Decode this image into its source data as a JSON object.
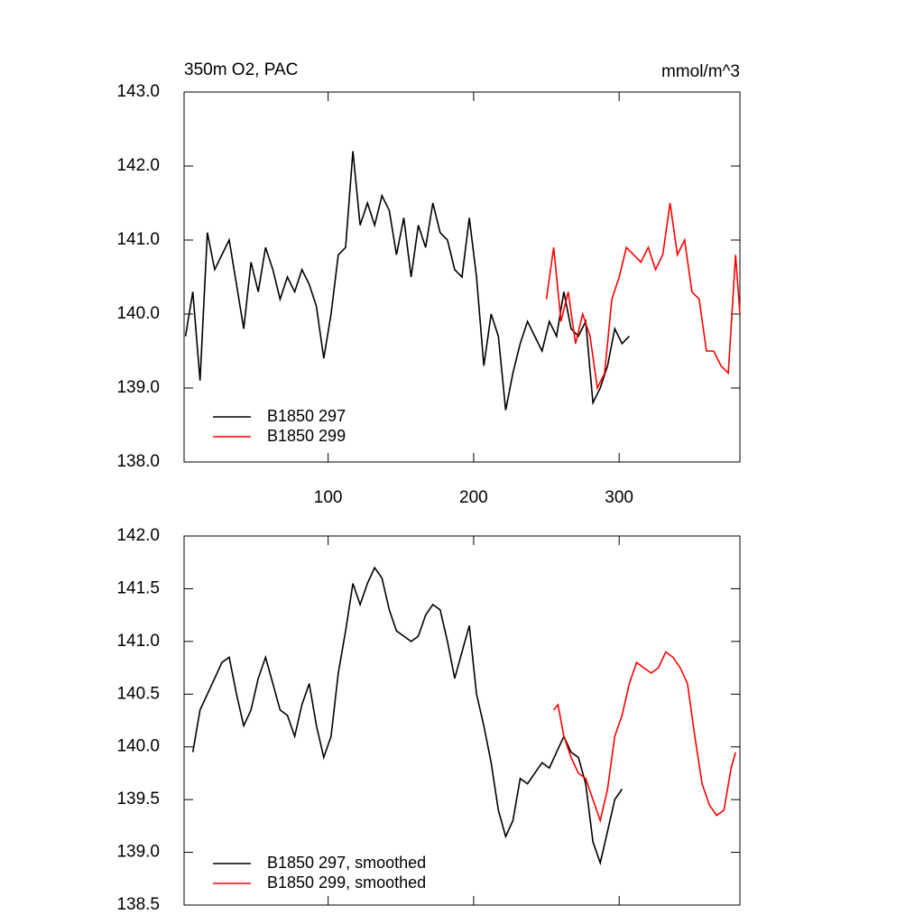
{
  "chart_data": [
    {
      "type": "line",
      "title": "350m O2, PAC",
      "units_label": "mmol/m^3",
      "xlim": [
        1,
        383
      ],
      "xticks": [
        100,
        200,
        300
      ],
      "xticklabels": true,
      "ylim": [
        138,
        143
      ],
      "yticks": [
        {
          "value": 138,
          "label": "138.0"
        },
        {
          "value": 139,
          "label": "139.0"
        },
        {
          "value": 140,
          "label": "140.0"
        },
        {
          "value": 141,
          "label": "141.0"
        },
        {
          "value": 142,
          "label": "142.0"
        },
        {
          "value": 143,
          "label": "143.0"
        }
      ],
      "legend": "lower left",
      "series": [
        {
          "name": "B1850 297",
          "color": "#000000",
          "x": [
            2,
            7,
            12,
            17,
            22,
            27,
            32,
            37,
            42,
            47,
            52,
            57,
            62,
            67,
            72,
            77,
            82,
            87,
            92,
            97,
            102,
            107,
            112,
            117,
            122,
            127,
            132,
            137,
            142,
            147,
            152,
            157,
            162,
            167,
            172,
            177,
            182,
            187,
            192,
            197,
            202,
            207,
            212,
            217,
            222,
            227,
            232,
            237,
            242,
            247,
            252,
            257,
            262,
            267,
            272,
            277,
            282,
            287,
            292,
            297,
            302,
            307
          ],
          "values": [
            139.7,
            140.3,
            139.1,
            141.1,
            140.6,
            140.8,
            141.0,
            140.4,
            139.8,
            140.7,
            140.3,
            140.9,
            140.6,
            140.2,
            140.5,
            140.3,
            140.6,
            140.4,
            140.1,
            139.4,
            140.0,
            140.8,
            140.9,
            142.2,
            141.2,
            141.5,
            141.2,
            141.6,
            141.4,
            140.8,
            141.3,
            140.5,
            141.2,
            140.9,
            141.5,
            141.1,
            141.0,
            140.6,
            140.5,
            141.3,
            140.5,
            139.3,
            140.0,
            139.7,
            138.7,
            139.2,
            139.6,
            139.9,
            139.7,
            139.5,
            139.9,
            139.7,
            140.3,
            139.8,
            139.7,
            139.9,
            138.8,
            139.0,
            139.3,
            139.8,
            139.6,
            139.7
          ]
        },
        {
          "name": "B1850 299",
          "color": "#ff0000",
          "x": [
            250,
            255,
            260,
            265,
            270,
            275,
            280,
            285,
            290,
            295,
            300,
            305,
            310,
            315,
            320,
            325,
            330,
            335,
            340,
            345,
            350,
            355,
            360,
            365,
            370,
            375,
            380,
            383
          ],
          "values": [
            140.2,
            140.9,
            139.9,
            140.3,
            139.6,
            140.0,
            139.7,
            139.0,
            139.2,
            140.2,
            140.5,
            140.9,
            140.8,
            140.7,
            140.9,
            140.6,
            140.8,
            141.5,
            140.8,
            141.0,
            140.3,
            140.2,
            139.5,
            139.5,
            139.3,
            139.2,
            140.8,
            140.0
          ]
        }
      ]
    },
    {
      "type": "line",
      "xlim": [
        1,
        383
      ],
      "xticks": [
        100,
        200,
        300
      ],
      "xticklabels": false,
      "ylim": [
        138.5,
        142
      ],
      "yticks": [
        {
          "value": 138.5,
          "label": "138.5"
        },
        {
          "value": 139,
          "label": "139.0"
        },
        {
          "value": 139.5,
          "label": "139.5"
        },
        {
          "value": 140,
          "label": "140.0"
        },
        {
          "value": 140.5,
          "label": "140.5"
        },
        {
          "value": 141,
          "label": "141.0"
        },
        {
          "value": 141.5,
          "label": "141.5"
        },
        {
          "value": 142,
          "label": "142.0"
        }
      ],
      "legend": "lower left",
      "series": [
        {
          "name": "B1850 297, smoothed",
          "color": "#000000",
          "x": [
            7,
            12,
            17,
            22,
            27,
            32,
            37,
            42,
            47,
            52,
            57,
            62,
            67,
            72,
            77,
            82,
            87,
            92,
            97,
            102,
            107,
            112,
            117,
            122,
            127,
            132,
            137,
            142,
            147,
            152,
            157,
            162,
            167,
            172,
            177,
            182,
            187,
            192,
            197,
            202,
            207,
            212,
            217,
            222,
            227,
            232,
            237,
            242,
            247,
            252,
            257,
            262,
            267,
            272,
            277,
            282,
            287,
            292,
            297,
            302
          ],
          "values": [
            139.95,
            140.35,
            140.5,
            140.65,
            140.8,
            140.85,
            140.5,
            140.2,
            140.35,
            140.65,
            140.85,
            140.6,
            140.35,
            140.3,
            140.1,
            140.4,
            140.6,
            140.2,
            139.9,
            140.1,
            140.7,
            141.1,
            141.55,
            141.35,
            141.55,
            141.7,
            141.6,
            141.3,
            141.1,
            141.05,
            141.0,
            141.05,
            141.25,
            141.35,
            141.3,
            141.0,
            140.65,
            140.9,
            141.15,
            140.5,
            140.2,
            139.85,
            139.4,
            139.15,
            139.3,
            139.7,
            139.65,
            139.75,
            139.85,
            139.8,
            139.95,
            140.1,
            139.95,
            139.9,
            139.65,
            139.1,
            138.9,
            139.2,
            139.5,
            139.6
          ]
        },
        {
          "name": "B1850 299, smoothed",
          "color": "#ff0000",
          "x": [
            255,
            258,
            262,
            267,
            272,
            277,
            282,
            287,
            292,
            297,
            302,
            307,
            312,
            317,
            322,
            327,
            332,
            337,
            342,
            347,
            352,
            357,
            362,
            367,
            372,
            377,
            380
          ],
          "values": [
            140.35,
            140.4,
            140.1,
            139.9,
            139.75,
            139.7,
            139.5,
            139.3,
            139.6,
            140.1,
            140.3,
            140.6,
            140.8,
            140.75,
            140.7,
            140.75,
            140.9,
            140.85,
            140.75,
            140.6,
            140.1,
            139.65,
            139.45,
            139.35,
            139.4,
            139.8,
            139.95
          ]
        }
      ]
    }
  ]
}
